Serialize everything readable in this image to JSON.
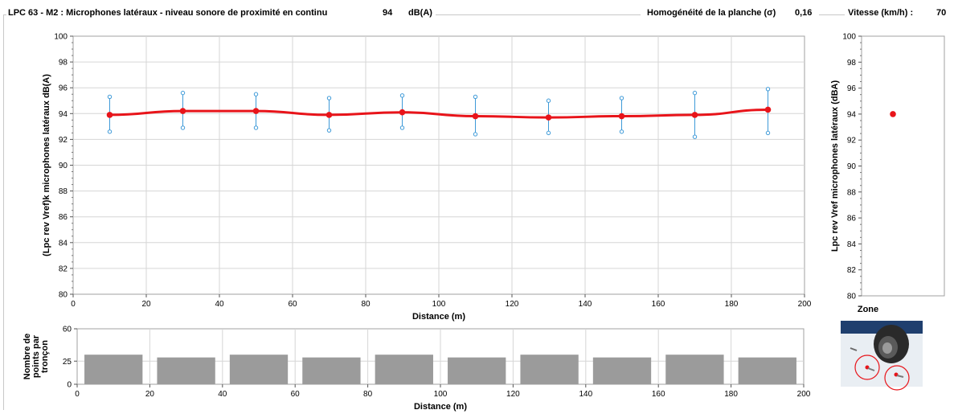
{
  "header": {
    "title": "LPC 63 - M2 : Microphones latéraux - niveau sonore de proximité en continu",
    "level_value": "94",
    "level_unit": "dB(A)",
    "homogeneity_label": "Homogénéité de la planche (σ)",
    "homogeneity_value": "0,16",
    "speed_label": "Vitesse (km/h) :",
    "speed_value": "70"
  },
  "zone": {
    "title": "Zone"
  },
  "chart_data": [
    {
      "type": "line",
      "name": "main",
      "xlabel": "Distance (m)",
      "ylabel": "(Lpc rev Vref)k microphones latéraux dB(A)",
      "xlim": [
        0,
        200
      ],
      "ylim": [
        80,
        100
      ],
      "xticks": [
        0,
        20,
        40,
        60,
        80,
        100,
        120,
        140,
        160,
        180,
        200
      ],
      "yticks": [
        80,
        82,
        84,
        86,
        88,
        90,
        92,
        94,
        96,
        98,
        100
      ],
      "grid": true,
      "series": [
        {
          "color": "#e8141a",
          "x": [
            10,
            30,
            50,
            70,
            90,
            110,
            130,
            150,
            170,
            190
          ],
          "values": [
            93.9,
            94.2,
            94.2,
            93.9,
            94.1,
            93.8,
            93.7,
            93.8,
            93.9,
            94.3
          ],
          "err_low": [
            92.6,
            92.9,
            92.9,
            92.7,
            92.9,
            92.4,
            92.5,
            92.6,
            92.2,
            92.5
          ],
          "err_high": [
            95.3,
            95.6,
            95.5,
            95.2,
            95.4,
            95.3,
            95.0,
            95.2,
            95.6,
            95.9
          ],
          "err_color": "#3e9ad8"
        }
      ]
    },
    {
      "type": "bar",
      "name": "counts",
      "xlabel": "Distance (m)",
      "ylabel": "Nombre de points par tronçon",
      "xlim": [
        0,
        200
      ],
      "ylim": [
        0,
        60
      ],
      "xticks": [
        0,
        20,
        40,
        60,
        80,
        100,
        120,
        140,
        160,
        180,
        200
      ],
      "yticks": [
        0,
        25,
        60
      ],
      "grid": true,
      "bar_color": "#9b9b9b",
      "bins": [
        [
          2,
          18
        ],
        [
          22,
          38
        ],
        [
          42,
          58
        ],
        [
          62,
          78
        ],
        [
          82,
          98
        ],
        [
          102,
          118
        ],
        [
          122,
          138
        ],
        [
          142,
          158
        ],
        [
          162,
          178
        ],
        [
          182,
          198
        ]
      ],
      "values": [
        32,
        29,
        32,
        29,
        32,
        29,
        32,
        29,
        32,
        29
      ]
    },
    {
      "type": "scatter",
      "name": "global",
      "ylabel": "Lpc rev Vref microphones latéraux (dBA)",
      "ylim": [
        80,
        100
      ],
      "yticks": [
        80,
        82,
        84,
        86,
        88,
        90,
        92,
        94,
        96,
        98,
        100
      ],
      "grid": false,
      "values": [
        94.0
      ],
      "color": "#e8141a"
    }
  ]
}
